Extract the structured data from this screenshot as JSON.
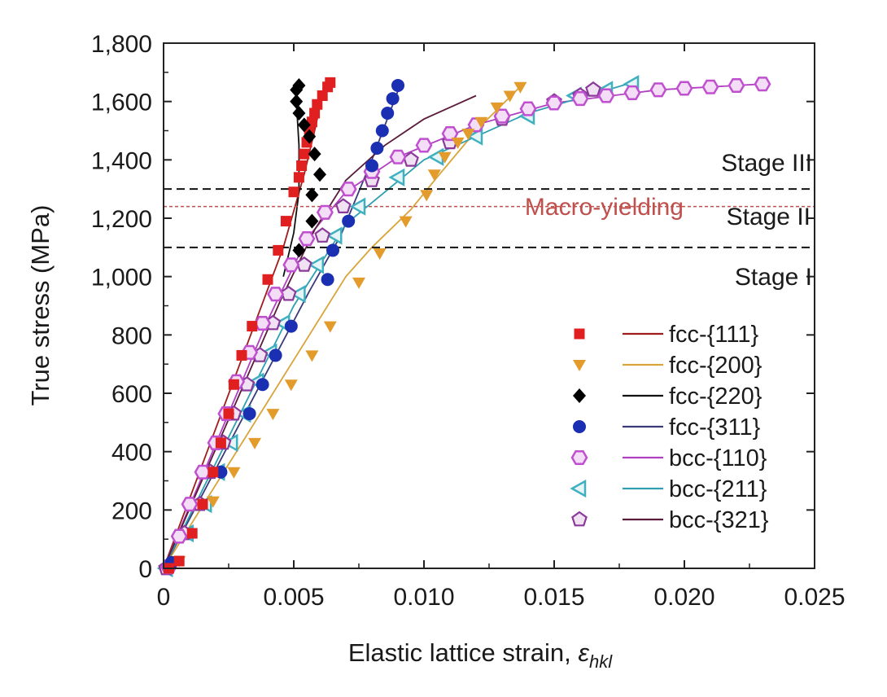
{
  "chart_data": {
    "type": "scatter",
    "xlabel": "Elastic lattice strain, ",
    "xlabel_symbol": "ε",
    "xlabel_subscript": "hkl",
    "ylabel": "True stress (MPa)",
    "xlim": [
      0,
      0.025
    ],
    "ylim": [
      0,
      1800
    ],
    "x_ticks": [
      0,
      0.005,
      0.01,
      0.015,
      0.02,
      0.025
    ],
    "x_tick_labels": [
      "0",
      "0.005",
      "0.010",
      "0.015",
      "0.020",
      "0.025"
    ],
    "y_ticks": [
      0,
      200,
      400,
      600,
      800,
      1000,
      1200,
      1400,
      1600,
      1800
    ],
    "y_tick_labels": [
      "0",
      "200",
      "400",
      "600",
      "800",
      "1,000",
      "1,200",
      "1,400",
      "1,600",
      "1,800"
    ],
    "grid": false,
    "legend_position": "bottom-right",
    "annotations": {
      "stages": [
        {
          "label": "Stage III",
          "y": 1350
        },
        {
          "label": "Stage II",
          "y": 1165
        },
        {
          "label": "Stage I",
          "y": 960
        }
      ],
      "boundary_lines": [
        1300,
        1100
      ],
      "macro_yielding": {
        "label": "Macro-yielding",
        "y": 1240,
        "color": "#c0504d"
      }
    },
    "series": [
      {
        "name": "fcc-{111}",
        "marker": "square",
        "color": "#e02020",
        "line_color": "#a01c1c",
        "points": [
          [
            0.0002,
            0
          ],
          [
            0.0006,
            25
          ],
          [
            0.0011,
            120
          ],
          [
            0.0015,
            220
          ],
          [
            0.0019,
            330
          ],
          [
            0.0022,
            430
          ],
          [
            0.0025,
            530
          ],
          [
            0.0027,
            630
          ],
          [
            0.003,
            730
          ],
          [
            0.0034,
            830
          ],
          [
            0.004,
            990
          ],
          [
            0.0044,
            1090
          ],
          [
            0.0047,
            1190
          ],
          [
            0.005,
            1290
          ],
          [
            0.0052,
            1340
          ],
          [
            0.0053,
            1380
          ],
          [
            0.0054,
            1420
          ],
          [
            0.0055,
            1460
          ],
          [
            0.0056,
            1500
          ],
          [
            0.0057,
            1530
          ],
          [
            0.0058,
            1560
          ],
          [
            0.0059,
            1590
          ],
          [
            0.0061,
            1620
          ],
          [
            0.0063,
            1650
          ],
          [
            0.0064,
            1665
          ]
        ],
        "line": [
          [
            0,
            0
          ],
          [
            0.0046,
            1100
          ],
          [
            0.0054,
            1350
          ],
          [
            0.0058,
            1500
          ],
          [
            0.0061,
            1620
          ],
          [
            0.0063,
            1665
          ]
        ]
      },
      {
        "name": "fcc-{200}",
        "marker": "triangle-down",
        "color": "#e39b2b",
        "line_color": "#d9a43a",
        "points": [
          [
            0.0006,
            25
          ],
          [
            0.0019,
            230
          ],
          [
            0.0027,
            330
          ],
          [
            0.0035,
            430
          ],
          [
            0.0042,
            530
          ],
          [
            0.0049,
            630
          ],
          [
            0.0057,
            730
          ],
          [
            0.0064,
            830
          ],
          [
            0.0075,
            980
          ],
          [
            0.0083,
            1080
          ],
          [
            0.0093,
            1190
          ],
          [
            0.0101,
            1280
          ],
          [
            0.0104,
            1350
          ],
          [
            0.0108,
            1410
          ],
          [
            0.0113,
            1460
          ],
          [
            0.0117,
            1490
          ],
          [
            0.0122,
            1530
          ],
          [
            0.0128,
            1580
          ],
          [
            0.0133,
            1620
          ],
          [
            0.0137,
            1650
          ]
        ],
        "line": [
          [
            0,
            0
          ],
          [
            0.007,
            1000
          ],
          [
            0.008,
            1100
          ],
          [
            0.0095,
            1230
          ],
          [
            0.0105,
            1340
          ],
          [
            0.012,
            1500
          ],
          [
            0.0138,
            1660
          ]
        ]
      },
      {
        "name": "fcc-{220}",
        "marker": "diamond",
        "color": "#000000",
        "line_color": "#111111",
        "points": [
          [
            0.0052,
            1090
          ],
          [
            0.0057,
            1190
          ],
          [
            0.0057,
            1280
          ],
          [
            0.006,
            1350
          ],
          [
            0.0058,
            1420
          ],
          [
            0.0056,
            1480
          ],
          [
            0.0054,
            1520
          ],
          [
            0.0052,
            1560
          ],
          [
            0.0051,
            1600
          ],
          [
            0.0051,
            1640
          ],
          [
            0.0052,
            1655
          ]
        ],
        "line": [
          [
            0.0046,
            1000
          ],
          [
            0.005,
            1150
          ],
          [
            0.0052,
            1290
          ],
          [
            0.0052,
            1450
          ],
          [
            0.0051,
            1600
          ],
          [
            0.0051,
            1665
          ]
        ]
      },
      {
        "name": "fcc-{311}",
        "marker": "circle",
        "color": "#1b2fb3",
        "line_color": "#3a3a7a",
        "points": [
          [
            0.0003,
            20
          ],
          [
            0.0022,
            330
          ],
          [
            0.0033,
            530
          ],
          [
            0.0038,
            630
          ],
          [
            0.0043,
            730
          ],
          [
            0.0049,
            830
          ],
          [
            0.0063,
            990
          ],
          [
            0.0065,
            1090
          ],
          [
            0.0071,
            1190
          ],
          [
            0.008,
            1380
          ],
          [
            0.0082,
            1440
          ],
          [
            0.0084,
            1500
          ],
          [
            0.0086,
            1560
          ],
          [
            0.0088,
            1610
          ],
          [
            0.009,
            1655
          ]
        ],
        "line": [
          [
            0,
            0
          ],
          [
            0.0056,
            950
          ],
          [
            0.0068,
            1140
          ],
          [
            0.008,
            1400
          ],
          [
            0.0091,
            1660
          ]
        ]
      },
      {
        "name": "bcc-{110}",
        "marker": "hexagon",
        "color": "#c050d0",
        "line_color": "#b040c0",
        "points": [
          [
            0.0002,
            5
          ],
          [
            0.0006,
            110
          ],
          [
            0.001,
            220
          ],
          [
            0.0015,
            330
          ],
          [
            0.002,
            430
          ],
          [
            0.0024,
            530
          ],
          [
            0.0028,
            640
          ],
          [
            0.0033,
            740
          ],
          [
            0.0038,
            840
          ],
          [
            0.0043,
            940
          ],
          [
            0.0049,
            1040
          ],
          [
            0.0055,
            1130
          ],
          [
            0.0062,
            1220
          ],
          [
            0.0071,
            1300
          ],
          [
            0.008,
            1360
          ],
          [
            0.009,
            1410
          ],
          [
            0.01,
            1450
          ],
          [
            0.011,
            1490
          ],
          [
            0.012,
            1520
          ],
          [
            0.013,
            1550
          ],
          [
            0.014,
            1575
          ],
          [
            0.015,
            1595
          ],
          [
            0.016,
            1610
          ],
          [
            0.017,
            1620
          ],
          [
            0.018,
            1630
          ],
          [
            0.019,
            1640
          ],
          [
            0.02,
            1645
          ],
          [
            0.021,
            1650
          ],
          [
            0.022,
            1655
          ],
          [
            0.023,
            1660
          ]
        ],
        "line": [
          [
            0,
            0
          ],
          [
            0.004,
            850
          ],
          [
            0.0055,
            1130
          ],
          [
            0.007,
            1290
          ],
          [
            0.009,
            1410
          ],
          [
            0.012,
            1520
          ],
          [
            0.015,
            1595
          ],
          [
            0.019,
            1640
          ],
          [
            0.023,
            1660
          ]
        ]
      },
      {
        "name": "bcc-{211}",
        "marker": "triangle-left",
        "color": "#40b0c0",
        "line_color": "#30a0b0",
        "points": [
          [
            0.0001,
            0
          ],
          [
            0.0009,
            120
          ],
          [
            0.0016,
            220
          ],
          [
            0.0021,
            330
          ],
          [
            0.0026,
            430
          ],
          [
            0.0031,
            530
          ],
          [
            0.0036,
            640
          ],
          [
            0.0041,
            740
          ],
          [
            0.0046,
            840
          ],
          [
            0.0052,
            940
          ],
          [
            0.0059,
            1040
          ],
          [
            0.0066,
            1140
          ],
          [
            0.0075,
            1240
          ],
          [
            0.009,
            1340
          ],
          [
            0.0105,
            1410
          ],
          [
            0.012,
            1480
          ],
          [
            0.014,
            1550
          ],
          [
            0.0158,
            1620
          ],
          [
            0.017,
            1640
          ],
          [
            0.018,
            1660
          ]
        ],
        "line": [
          [
            0,
            0
          ],
          [
            0.005,
            900
          ],
          [
            0.007,
            1180
          ],
          [
            0.01,
            1400
          ],
          [
            0.014,
            1560
          ],
          [
            0.018,
            1665
          ]
        ]
      },
      {
        "name": "bcc-{321}",
        "marker": "pentagon",
        "color": "#8a3a9a",
        "line_color": "#5a1a3a",
        "points": [
          [
            0.0001,
            0
          ],
          [
            0.0008,
            120
          ],
          [
            0.0014,
            220
          ],
          [
            0.0018,
            330
          ],
          [
            0.0023,
            430
          ],
          [
            0.0027,
            530
          ],
          [
            0.0032,
            630
          ],
          [
            0.0037,
            730
          ],
          [
            0.0042,
            840
          ],
          [
            0.0048,
            940
          ],
          [
            0.0054,
            1040
          ],
          [
            0.0061,
            1140
          ],
          [
            0.0069,
            1240
          ],
          [
            0.008,
            1330
          ],
          [
            0.0095,
            1400
          ],
          [
            0.011,
            1460
          ],
          [
            0.013,
            1540
          ],
          [
            0.015,
            1600
          ],
          [
            0.016,
            1620
          ],
          [
            0.0165,
            1640
          ]
        ],
        "line": [
          [
            0,
            0
          ],
          [
            0.0045,
            920
          ],
          [
            0.0058,
            1160
          ],
          [
            0.007,
            1330
          ],
          [
            0.0085,
            1450
          ],
          [
            0.01,
            1540
          ],
          [
            0.012,
            1620
          ]
        ]
      }
    ]
  }
}
